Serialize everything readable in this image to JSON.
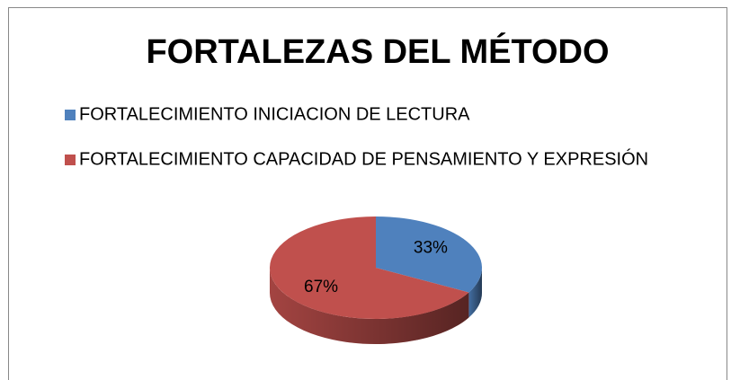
{
  "chart_data": {
    "type": "pie",
    "title": "FORTALEZAS DEL MÉTODO",
    "categories": [
      "FORTALECIMIENTO INICIACION DE LECTURA",
      "FORTALECIMIENTO CAPACIDAD DE PENSAMIENTO Y EXPRESIÓN"
    ],
    "values": [
      33,
      67
    ],
    "value_labels": [
      "33%",
      "67%"
    ],
    "colors": [
      "#4f81bd",
      "#c0504d"
    ],
    "legend": "top"
  }
}
